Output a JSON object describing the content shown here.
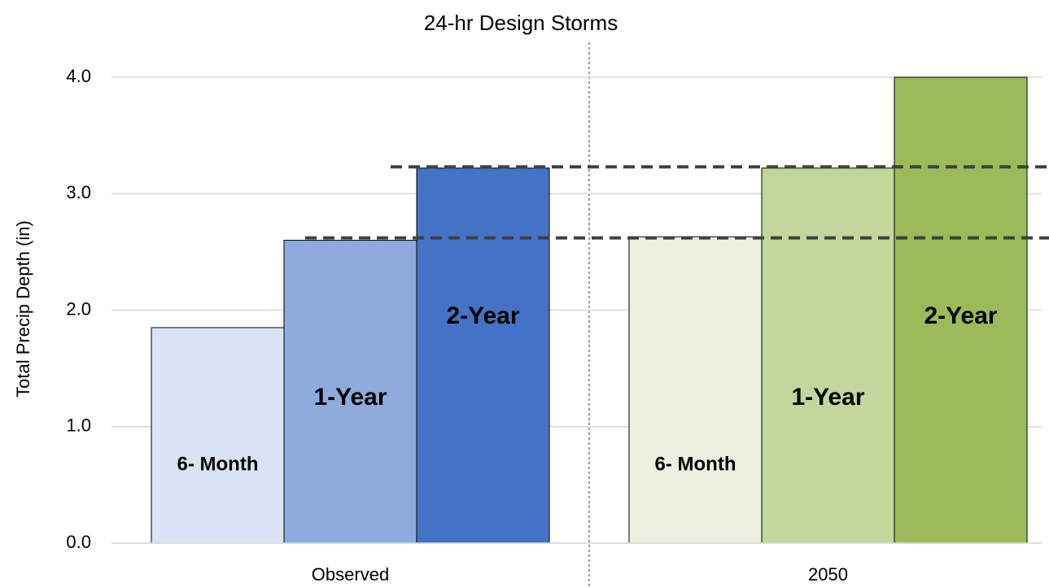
{
  "chart_data": {
    "type": "bar",
    "title": "24-hr Design Storms",
    "y_label": "Total Precip Depth (in)",
    "categories": [
      "Observed",
      "2050"
    ],
    "series": [
      {
        "name": "6- Month",
        "colors": [
          "#dae3f3",
          "#ebf1de"
        ],
        "values": [
          1.85,
          2.63
        ]
      },
      {
        "name": "1-Year",
        "colors": [
          "#8faadc",
          "#c3d69b"
        ],
        "values": [
          2.6,
          3.22
        ]
      },
      {
        "name": "2-Year",
        "colors": [
          "#4472c4",
          "#9bbb59"
        ],
        "values": [
          3.22,
          4.0
        ]
      }
    ],
    "reference_lines": [
      2.62,
      3.23
    ],
    "ylim": [
      0,
      4
    ],
    "yticks": [
      {
        "value": 0,
        "label": "0.0"
      },
      {
        "value": 1,
        "label": "1.0"
      },
      {
        "value": 2,
        "label": "2.0"
      },
      {
        "value": 3,
        "label": "3.0"
      },
      {
        "value": 4,
        "label": "4.0"
      }
    ],
    "grid": true
  }
}
